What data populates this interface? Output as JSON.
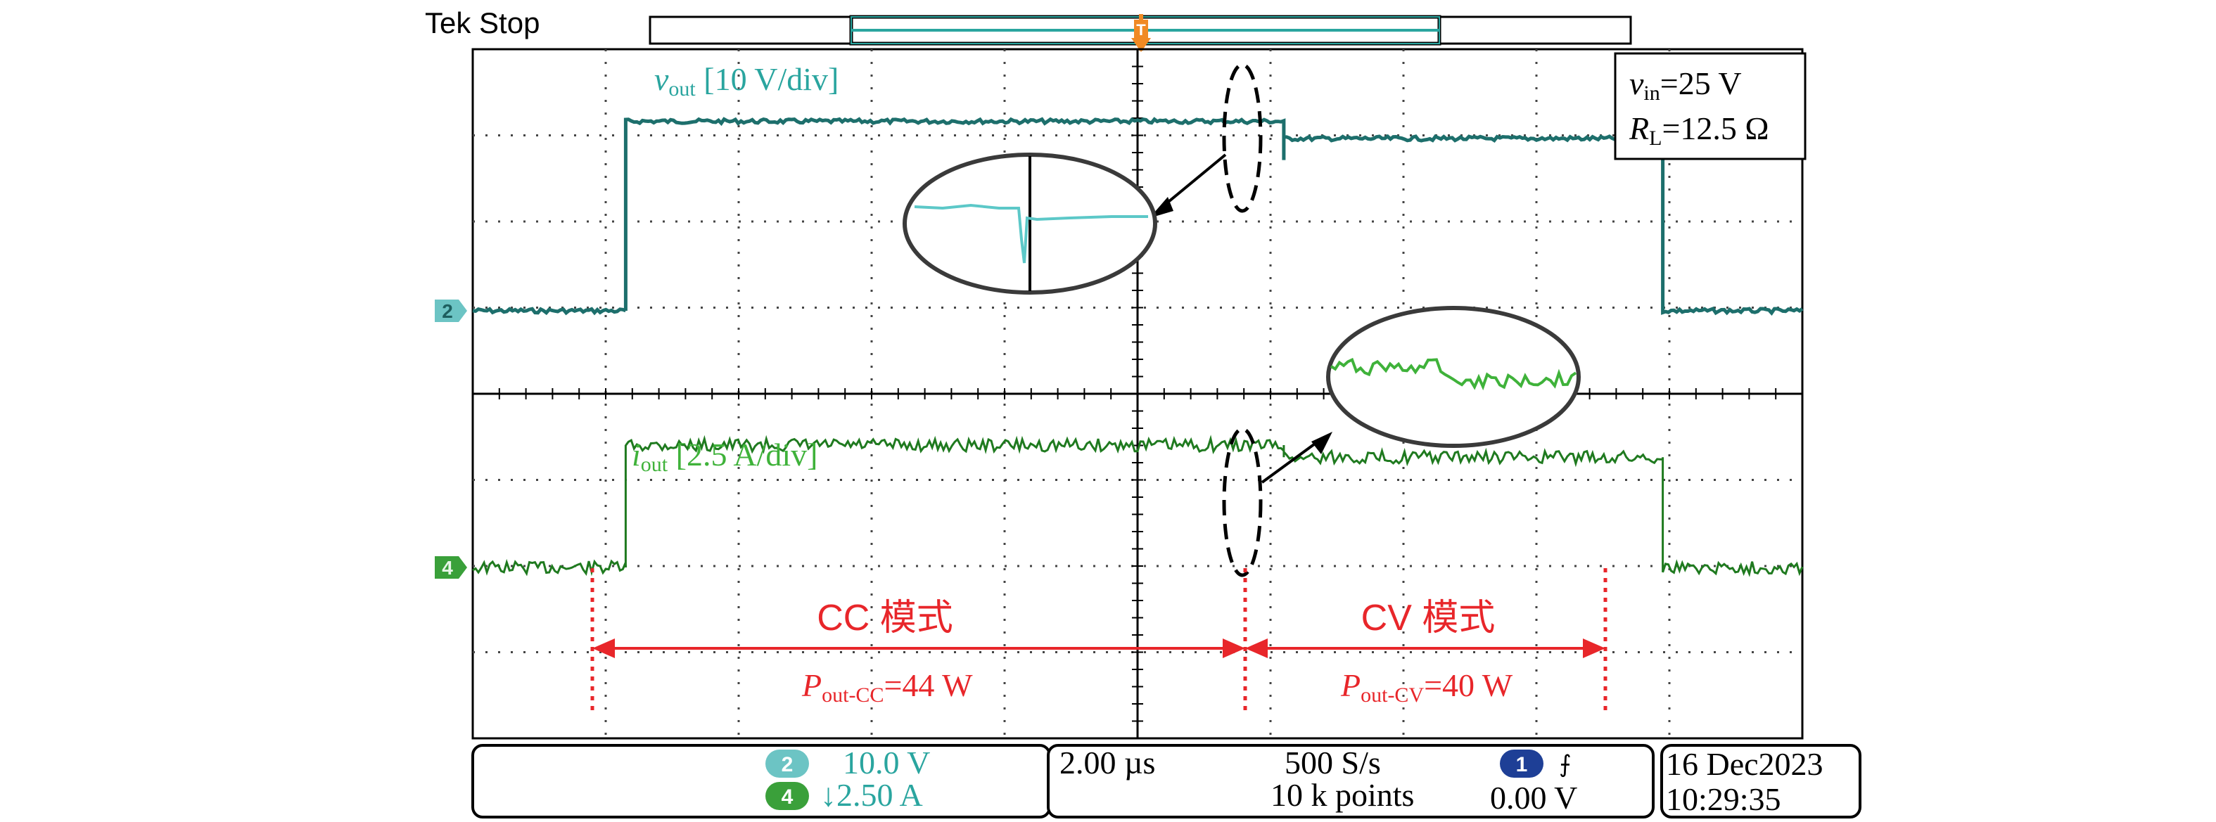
{
  "header": {
    "status": "Tek Stop",
    "trigger_marker": "T"
  },
  "annotations": {
    "vout_label_main": "v",
    "vout_label_sub": "out",
    "vout_label_scale": " [10 V/div]",
    "iout_label_main": "i",
    "iout_label_sub": "out",
    "iout_label_scale": " [2.5 A/div]",
    "info_vin_main": "v",
    "info_vin_sub": "in",
    "info_vin_value": "=25 V",
    "info_rl_main": "R",
    "info_rl_sub": "L",
    "info_rl_value": "=12.5 Ω",
    "cc_mode": "CC 模式",
    "cv_mode": "CV 模式",
    "pcc_main": "P",
    "pcc_sub": "out-CC",
    "pcc_value": "=44 W",
    "pcv_main": "P",
    "pcv_sub": "out-CV",
    "pcv_value": "=40 W"
  },
  "status_bar": {
    "ch2_badge": "2",
    "ch2_scale": "10.0 V",
    "ch4_badge": "4",
    "ch4_scale": "↓2.50 A",
    "timebase": "2.00 µs",
    "sample_rate": "500 S/s",
    "record_length": "10 k points",
    "trigger_badge": "1",
    "trigger_slope": "⨍",
    "trigger_level": "0.00 V",
    "date": "16 Dec2023",
    "time": "10:29:35"
  },
  "colors": {
    "vout": "#2aa59f",
    "vout_dark": "#1d6f6c",
    "iout": "#3fb23a",
    "iout_dark": "#1f7a1f",
    "annotation_red": "#e8262a",
    "grid": "#000000",
    "ch2_badge": "#6cc4c4",
    "ch4_badge": "#3aa03a",
    "trigger_badge": "#1e3f96",
    "trigger_marker": "#f08a24"
  },
  "chart_data": {
    "type": "line",
    "x_unit": "div",
    "x_divisions": 10,
    "time_per_div": "2.00 µs",
    "grid": true,
    "series": [
      {
        "name": "vout",
        "unit": "V",
        "scale_per_div": 10.0,
        "points": [
          [
            0.0,
            0.0
          ],
          [
            1.15,
            0.0
          ],
          [
            1.15,
            22.0
          ],
          [
            6.1,
            22.0
          ],
          [
            6.1,
            17.5
          ],
          [
            6.1,
            20.0
          ],
          [
            8.95,
            20.0
          ],
          [
            8.95,
            0.0
          ],
          [
            10.0,
            0.0
          ]
        ]
      },
      {
        "name": "iout",
        "unit": "A",
        "scale_per_div": 2.5,
        "points": [
          [
            0.0,
            0.0
          ],
          [
            1.15,
            0.0
          ],
          [
            1.15,
            3.55
          ],
          [
            6.1,
            3.55
          ],
          [
            6.1,
            3.2
          ],
          [
            8.95,
            3.2
          ],
          [
            8.95,
            0.0
          ],
          [
            10.0,
            0.0
          ]
        ]
      }
    ],
    "regions": [
      {
        "label": "CC 模式",
        "x_start": 0.9,
        "x_end": 5.85,
        "power_w": 44
      },
      {
        "label": "CV 模式",
        "x_start": 5.85,
        "x_end": 8.6,
        "power_w": 40
      }
    ]
  }
}
